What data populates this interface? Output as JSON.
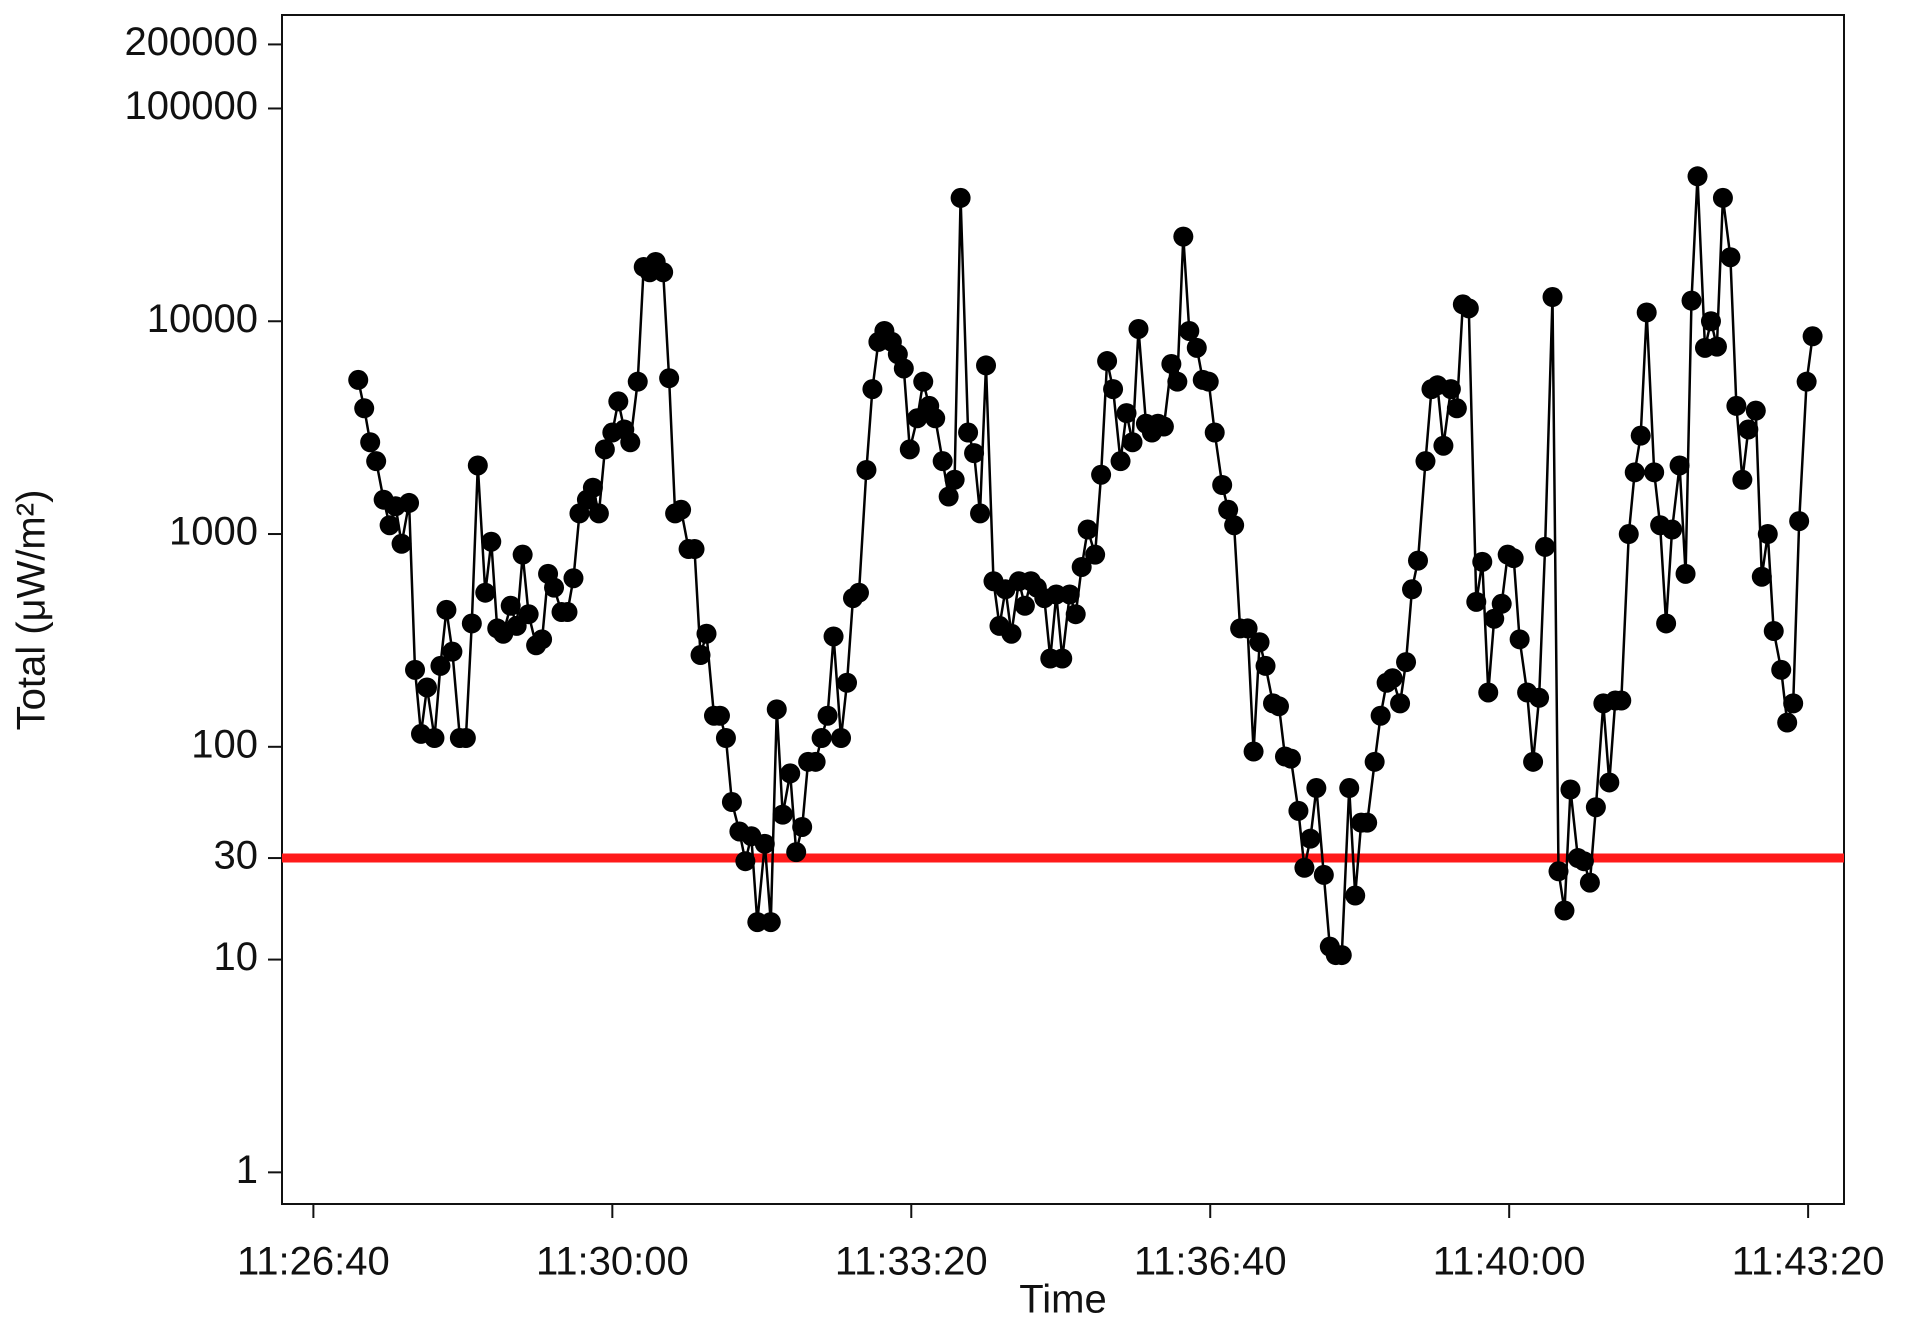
{
  "chart_data": {
    "type": "line",
    "xlabel": "Time",
    "ylabel": "Total (μW/m²)",
    "x": [
      "11:27:10",
      "11:27:14",
      "11:27:18",
      "11:27:22",
      "11:27:27",
      "11:27:31",
      "11:27:35",
      "11:27:39",
      "11:27:44",
      "11:27:48",
      "11:27:52",
      "11:27:56",
      "11:28:01",
      "11:28:05",
      "11:28:09",
      "11:28:13",
      "11:28:18",
      "11:28:22",
      "11:28:26",
      "11:28:30",
      "11:28:35",
      "11:28:39",
      "11:28:43",
      "11:28:47",
      "11:28:52",
      "11:28:56",
      "11:29:00",
      "11:29:04",
      "11:29:09",
      "11:29:13",
      "11:29:17",
      "11:29:21",
      "11:29:26",
      "11:29:30",
      "11:29:34",
      "11:29:38",
      "11:29:43",
      "11:29:47",
      "11:29:51",
      "11:29:55",
      "11:30:00",
      "11:30:04",
      "11:30:08",
      "11:30:12",
      "11:30:17",
      "11:30:21",
      "11:30:25",
      "11:30:29",
      "11:30:34",
      "11:30:38",
      "11:30:42",
      "11:30:46",
      "11:30:51",
      "11:30:55",
      "11:30:59",
      "11:31:03",
      "11:31:08",
      "11:31:12",
      "11:31:16",
      "11:31:20",
      "11:31:25",
      "11:31:29",
      "11:31:33",
      "11:31:37",
      "11:31:42",
      "11:31:46",
      "11:31:50",
      "11:31:54",
      "11:31:59",
      "11:32:03",
      "11:32:07",
      "11:32:11",
      "11:32:16",
      "11:32:20",
      "11:32:24",
      "11:32:28",
      "11:32:33",
      "11:32:37",
      "11:32:41",
      "11:32:45",
      "11:32:50",
      "11:32:54",
      "11:32:58",
      "11:33:02",
      "11:33:07",
      "11:33:11",
      "11:33:15",
      "11:33:19",
      "11:33:24",
      "11:33:28",
      "11:33:32",
      "11:33:36",
      "11:33:41",
      "11:33:45",
      "11:33:49",
      "11:33:53",
      "11:33:58",
      "11:34:02",
      "11:34:06",
      "11:34:10",
      "11:34:15",
      "11:34:19",
      "11:34:23",
      "11:34:27",
      "11:34:32",
      "11:34:36",
      "11:34:40",
      "11:34:44",
      "11:34:49",
      "11:34:53",
      "11:34:57",
      "11:35:01",
      "11:35:06",
      "11:35:10",
      "11:35:14",
      "11:35:18",
      "11:35:23",
      "11:35:27",
      "11:35:31",
      "11:35:35",
      "11:35:40",
      "11:35:44",
      "11:35:48",
      "11:35:52",
      "11:35:57",
      "11:36:01",
      "11:36:05",
      "11:36:09",
      "11:36:14",
      "11:36:18",
      "11:36:22",
      "11:36:26",
      "11:36:31",
      "11:36:35",
      "11:36:39",
      "11:36:43",
      "11:36:48",
      "11:36:52",
      "11:36:56",
      "11:37:00",
      "11:37:05",
      "11:37:09",
      "11:37:13",
      "11:37:17",
      "11:37:22",
      "11:37:26",
      "11:37:30",
      "11:37:34",
      "11:37:39",
      "11:37:43",
      "11:37:47",
      "11:37:51",
      "11:37:56",
      "11:38:00",
      "11:38:04",
      "11:38:08",
      "11:38:13",
      "11:38:17",
      "11:38:21",
      "11:38:25",
      "11:38:30",
      "11:38:34",
      "11:38:38",
      "11:38:42",
      "11:38:47",
      "11:38:51",
      "11:38:55",
      "11:38:59",
      "11:39:04",
      "11:39:08",
      "11:39:12",
      "11:39:16",
      "11:39:21",
      "11:39:25",
      "11:39:29",
      "11:39:33",
      "11:39:38",
      "11:39:42",
      "11:39:46",
      "11:39:50",
      "11:39:55",
      "11:39:59",
      "11:40:03",
      "11:40:07",
      "11:40:12",
      "11:40:16",
      "11:40:20",
      "11:40:24",
      "11:40:29",
      "11:40:33",
      "11:40:37",
      "11:40:41",
      "11:40:46",
      "11:40:50",
      "11:40:54",
      "11:40:58",
      "11:41:03",
      "11:41:07",
      "11:41:11",
      "11:41:15",
      "11:41:20",
      "11:41:24",
      "11:41:28",
      "11:41:32",
      "11:41:37",
      "11:41:41",
      "11:41:45",
      "11:41:49",
      "11:41:54",
      "11:41:58",
      "11:42:02",
      "11:42:06",
      "11:42:11",
      "11:42:15",
      "11:42:19",
      "11:42:23",
      "11:42:28",
      "11:42:32",
      "11:42:36",
      "11:42:40",
      "11:42:45",
      "11:42:49",
      "11:42:53",
      "11:42:57",
      "11:43:02",
      "11:43:06",
      "11:43:10",
      "11:43:14",
      "11:43:19",
      "11:43:23"
    ],
    "values": [
      5300,
      3900,
      2700,
      2200,
      1450,
      1100,
      1350,
      900,
      1400,
      230,
      115,
      190,
      110,
      240,
      440,
      280,
      110,
      110,
      380,
      2100,
      530,
      920,
      360,
      340,
      460,
      370,
      800,
      420,
      300,
      320,
      650,
      560,
      430,
      430,
      620,
      1250,
      1450,
      1650,
      1250,
      2500,
      3000,
      4200,
      3100,
      2700,
      5200,
      18000,
      17000,
      19000,
      17000,
      5400,
      1250,
      1300,
      850,
      850,
      270,
      340,
      140,
      140,
      110,
      55,
      40,
      29,
      38,
      15,
      35,
      15,
      150,
      48,
      75,
      32,
      42,
      85,
      85,
      110,
      140,
      330,
      110,
      200,
      500,
      530,
      2000,
      4800,
      8000,
      9000,
      8000,
      7000,
      6000,
      2500,
      3500,
      5200,
      4000,
      3500,
      2200,
      1500,
      1800,
      38000,
      3000,
      2400,
      1250,
      6200,
      600,
      370,
      550,
      340,
      600,
      460,
      600,
      560,
      500,
      260,
      520,
      260,
      520,
      420,
      700,
      1050,
      800,
      1900,
      6500,
      4800,
      2200,
      3700,
      2700,
      9200,
      3300,
      3000,
      3300,
      3200,
      6300,
      5200,
      25000,
      9000,
      7500,
      5300,
      5200,
      3000,
      1700,
      1300,
      1100,
      360,
      360,
      95,
      310,
      240,
      160,
      155,
      90,
      88,
      50,
      27,
      37,
      64,
      25,
      11.5,
      10.5,
      10.5,
      64,
      20,
      44,
      44,
      85,
      140,
      200,
      210,
      160,
      250,
      550,
      750,
      2200,
      4800,
      5000,
      2600,
      4800,
      3900,
      12000,
      11500,
      480,
      740,
      180,
      400,
      470,
      800,
      770,
      320,
      180,
      85,
      170,
      870,
      13000,
      26,
      17,
      63,
      30,
      29,
      23,
      52,
      160,
      68,
      165,
      165,
      1000,
      1950,
      2900,
      11000,
      1950,
      1100,
      380,
      1050,
      2100,
      650,
      12500,
      48000,
      7500,
      10000,
      7600,
      38000,
      20000,
      4000,
      1800,
      3100,
      3800,
      630,
      1000,
      350,
      230,
      130,
      160,
      1150,
      5200,
      8500
    ],
    "color": "#000000",
    "marker": "circle",
    "xlim": [
      "11:26:19",
      "11:43:44"
    ],
    "xticks": [
      "11:26:40",
      "11:30:00",
      "11:33:20",
      "11:36:40",
      "11:40:00",
      "11:43:20"
    ],
    "ylim": [
      0.71,
      275000
    ],
    "log_y": true,
    "yticks": [
      1,
      10,
      30,
      100,
      1000,
      10000,
      100000,
      200000
    ],
    "hline": {
      "value": 30,
      "color": "#ff1a1a"
    }
  }
}
